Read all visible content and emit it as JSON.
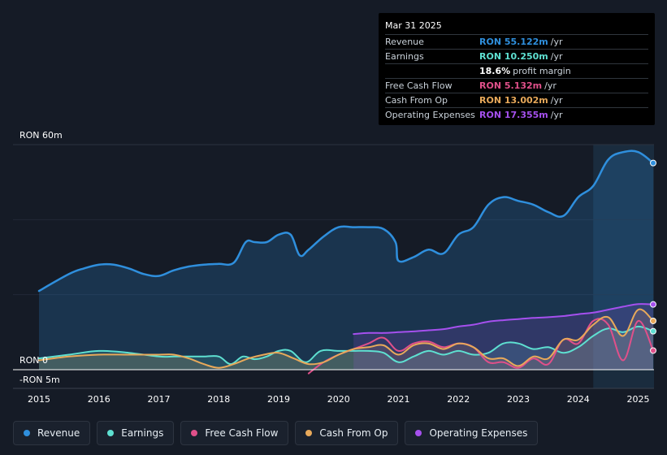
{
  "tooltip": {
    "date": "Mar 31 2025",
    "rows": [
      {
        "label": "Revenue",
        "value": "RON 55.122m",
        "unit": "/yr",
        "color": "#2f8fdd"
      },
      {
        "label": "Earnings",
        "value": "RON 10.250m",
        "unit": "/yr",
        "color": "#5ee0d1"
      },
      {
        "label": "",
        "value": "18.6%",
        "unit": "profit margin",
        "color": "#ffffff"
      },
      {
        "label": "Free Cash Flow",
        "value": "RON 5.132m",
        "unit": "/yr",
        "color": "#e0508a"
      },
      {
        "label": "Cash From Op",
        "value": "RON 13.002m",
        "unit": "/yr",
        "color": "#e8a95a"
      },
      {
        "label": "Operating Expenses",
        "value": "RON 17.355m",
        "unit": "/yr",
        "color": "#a550ee"
      }
    ]
  },
  "legend": [
    {
      "label": "Revenue",
      "color": "#2f8fdd"
    },
    {
      "label": "Earnings",
      "color": "#5ee0d1"
    },
    {
      "label": "Free Cash Flow",
      "color": "#e0508a"
    },
    {
      "label": "Cash From Op",
      "color": "#e8a95a"
    },
    {
      "label": "Operating Expenses",
      "color": "#a550ee"
    }
  ],
  "chart_data": {
    "type": "line",
    "y_top_label": "RON 60m",
    "y_zero_label": "RON 0",
    "y_bottom_label": "-RON 5m",
    "ylim": [
      -5,
      60
    ],
    "xlim": [
      2015.0,
      2025.25
    ],
    "forecast_start": 2024.25,
    "x_ticks": [
      "2015",
      "2016",
      "2017",
      "2018",
      "2019",
      "2020",
      "2021",
      "2022",
      "2023",
      "2024",
      "2025"
    ],
    "x_tick_values": [
      2015,
      2016,
      2017,
      2018,
      2019,
      2020,
      2021,
      2022,
      2023,
      2024,
      2025
    ],
    "series": [
      {
        "name": "Revenue",
        "color": "#2f8fdd",
        "fill": true,
        "x": [
          2015.0,
          2015.5,
          2015.75,
          2016.0,
          2016.25,
          2016.5,
          2016.75,
          2017.0,
          2017.25,
          2017.5,
          2017.75,
          2018.0,
          2018.25,
          2018.45,
          2018.6,
          2018.8,
          2019.0,
          2019.2,
          2019.35,
          2019.5,
          2019.75,
          2020.0,
          2020.25,
          2020.5,
          2020.75,
          2020.95,
          2021.0,
          2021.25,
          2021.5,
          2021.75,
          2022.0,
          2022.25,
          2022.5,
          2022.75,
          2023.0,
          2023.25,
          2023.5,
          2023.75,
          2024.0,
          2024.25,
          2024.5,
          2024.75,
          2025.0,
          2025.25
        ],
        "values": [
          21,
          25.5,
          27,
          28,
          28,
          27,
          25.5,
          25,
          26.5,
          27.5,
          28,
          28.2,
          28.5,
          34,
          34,
          34,
          36,
          36,
          30.5,
          32,
          35.5,
          38,
          38,
          38,
          37.5,
          34,
          29,
          30,
          32,
          31,
          36,
          38,
          44,
          46,
          45,
          44,
          42,
          41,
          46,
          49,
          56,
          58,
          58,
          55.1
        ]
      },
      {
        "name": "Earnings",
        "color": "#5ee0d1",
        "fill": true,
        "x": [
          2015.0,
          2015.5,
          2016.0,
          2016.5,
          2017.0,
          2017.25,
          2017.5,
          2017.75,
          2018.0,
          2018.2,
          2018.4,
          2018.6,
          2018.8,
          2019.0,
          2019.2,
          2019.45,
          2019.7,
          2020.0,
          2020.25,
          2020.5,
          2020.75,
          2021.0,
          2021.25,
          2021.5,
          2021.75,
          2022.0,
          2022.25,
          2022.5,
          2022.75,
          2023.0,
          2023.25,
          2023.5,
          2023.75,
          2024.0,
          2024.25,
          2024.5,
          2024.75,
          2025.0,
          2025.25
        ],
        "values": [
          3,
          4,
          5,
          4.5,
          3.5,
          3.5,
          3.5,
          3.5,
          3.5,
          1.5,
          3.5,
          2.8,
          3.5,
          5,
          5,
          2,
          5,
          5,
          5,
          5,
          4.5,
          2,
          3.5,
          5,
          4,
          5,
          4,
          4.5,
          7,
          7,
          5.5,
          6,
          4.5,
          6,
          9,
          11,
          10,
          11.5,
          10.25
        ]
      },
      {
        "name": "Free Cash Flow",
        "color": "#e0508a",
        "fill": false,
        "x": [
          2019.5,
          2019.75,
          2020.0,
          2020.25,
          2020.5,
          2020.75,
          2021.0,
          2021.25,
          2021.5,
          2021.75,
          2022.0,
          2022.25,
          2022.5,
          2022.75,
          2023.0,
          2023.25,
          2023.5,
          2023.75,
          2024.0,
          2024.25,
          2024.5,
          2024.75,
          2025.0,
          2025.25
        ],
        "values": [
          -1,
          2,
          4,
          5.5,
          7,
          8.5,
          5,
          7,
          7.5,
          6,
          7,
          6,
          2,
          2,
          0.5,
          3,
          1.5,
          8,
          7,
          13,
          12,
          2.5,
          13,
          5.1
        ]
      },
      {
        "name": "Cash From Op",
        "color": "#e8a95a",
        "fill": true,
        "x": [
          2015.0,
          2015.5,
          2016.0,
          2016.5,
          2017.0,
          2017.25,
          2017.5,
          2017.75,
          2018.0,
          2018.25,
          2018.5,
          2018.75,
          2019.0,
          2019.25,
          2019.5,
          2019.75,
          2020.0,
          2020.25,
          2020.5,
          2020.75,
          2021.0,
          2021.25,
          2021.5,
          2021.75,
          2022.0,
          2022.25,
          2022.5,
          2022.75,
          2023.0,
          2023.25,
          2023.5,
          2023.75,
          2024.0,
          2024.25,
          2024.5,
          2024.75,
          2025.0,
          2025.25
        ],
        "values": [
          2.5,
          3.5,
          4,
          4,
          4,
          4,
          3,
          1.5,
          0.5,
          1.5,
          3,
          4,
          4.5,
          3,
          1.5,
          2,
          4,
          5.5,
          6,
          6.5,
          4,
          6.5,
          7,
          5.5,
          7,
          6,
          3,
          3,
          1,
          3.5,
          3,
          8,
          8,
          12,
          14,
          9,
          16,
          13
        ]
      },
      {
        "name": "Operating Expenses",
        "color": "#a550ee",
        "fill": true,
        "x": [
          2020.25,
          2020.5,
          2020.75,
          2021.0,
          2021.25,
          2021.5,
          2021.75,
          2022.0,
          2022.25,
          2022.5,
          2022.75,
          2023.0,
          2023.25,
          2023.5,
          2023.75,
          2024.0,
          2024.25,
          2024.5,
          2024.75,
          2025.0,
          2025.25
        ],
        "values": [
          9.5,
          9.8,
          9.8,
          10,
          10.2,
          10.5,
          10.8,
          11.5,
          12,
          12.8,
          13.2,
          13.5,
          13.8,
          14,
          14.3,
          14.8,
          15.2,
          16,
          16.8,
          17.5,
          17.4
        ]
      }
    ]
  }
}
